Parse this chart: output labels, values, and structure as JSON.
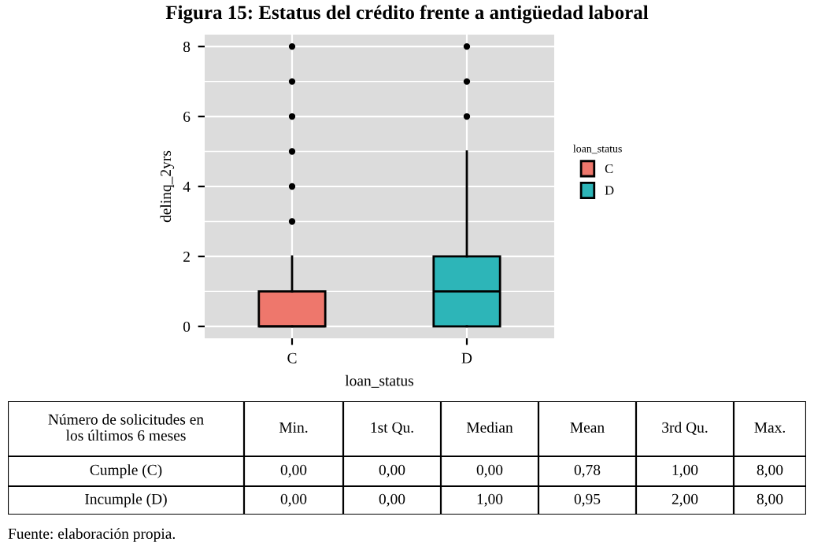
{
  "chart_data": [
    {
      "type": "box",
      "title": "Figura 15: Estatus del crédito frente a antigüedad laboral",
      "xlabel": "loan_status",
      "ylabel": "delinq_2yrs",
      "legend_title": "loan_status",
      "legend": "right",
      "grid": true,
      "categories": [
        "C",
        "D"
      ],
      "series": [
        {
          "name": "C",
          "color": "#ee776c",
          "boxes": [
            {
              "low": 0,
              "q1": 0,
              "median": 0,
              "q3": 1,
              "high": 2,
              "outliers": [
                3,
                4,
                5,
                6,
                7,
                8
              ]
            },
            null
          ]
        },
        {
          "name": "D",
          "color": "#2db5b8",
          "boxes": [
            null,
            {
              "low": 0,
              "q1": 0,
              "median": 1,
              "q3": 2,
              "high": 5,
              "outliers": [
                6,
                7,
                8
              ]
            }
          ]
        }
      ],
      "ylim": [
        -0.34,
        8.34
      ],
      "yticks": [
        0,
        2,
        4,
        6,
        8
      ],
      "annotations": [
        "Fuente: elaboración propia."
      ]
    },
    {
      "type": "other",
      "categories": [
        "Número de solicitudes en\nlos últimos 6 meses",
        "Min.",
        "1st Qu.",
        "Median",
        "Mean",
        "3rd Qu.",
        "Max."
      ],
      "y_categories": [
        "Cumple (C)",
        "Incumple (D)"
      ],
      "cell_labels": [
        [
          "0,00",
          "0,00",
          "0,00",
          "0,78",
          "1,00",
          "8,00"
        ],
        [
          "0,00",
          "0,00",
          "1,00",
          "0,95",
          "2,00",
          "8,00"
        ]
      ]
    }
  ]
}
